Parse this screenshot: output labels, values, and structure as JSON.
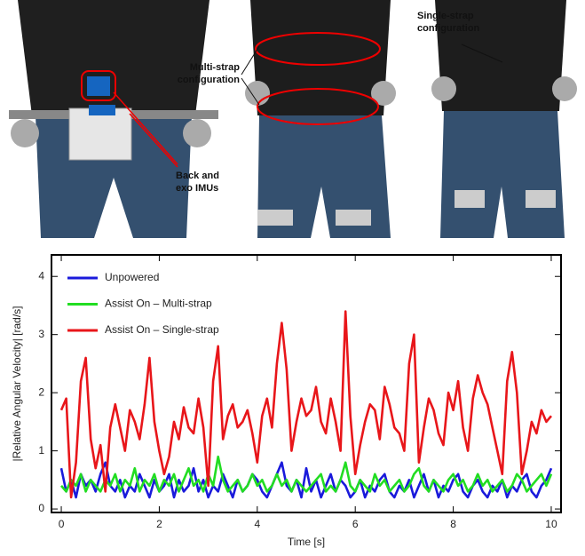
{
  "annotations": [
    {
      "lines": [
        "Multi-strap",
        "configuration"
      ]
    },
    {
      "lines": [
        "Single-strap",
        "configuration"
      ]
    },
    {
      "lines": [
        "Back and",
        "exo IMUs"
      ]
    }
  ],
  "chart_data": {
    "type": "line",
    "x_label": "Time [s]",
    "y_label": "|Relative Angular Velocity| [rad/s]",
    "x": [
      0,
      0.1,
      0.2,
      0.3,
      0.4,
      0.5,
      0.6,
      0.7,
      0.8,
      0.9,
      1,
      1.1,
      1.2,
      1.3,
      1.4,
      1.5,
      1.6,
      1.7,
      1.8,
      1.9,
      2,
      2.1,
      2.2,
      2.3,
      2.4,
      2.5,
      2.6,
      2.7,
      2.8,
      2.9,
      3,
      3.1,
      3.2,
      3.3,
      3.4,
      3.5,
      3.6,
      3.7,
      3.8,
      3.9,
      4,
      4.1,
      4.2,
      4.3,
      4.4,
      4.5,
      4.6,
      4.7,
      4.8,
      4.9,
      5,
      5.1,
      5.2,
      5.3,
      5.4,
      5.5,
      5.6,
      5.7,
      5.8,
      5.9,
      6,
      6.1,
      6.2,
      6.3,
      6.4,
      6.5,
      6.6,
      6.7,
      6.8,
      6.9,
      7,
      7.1,
      7.2,
      7.3,
      7.4,
      7.5,
      7.6,
      7.7,
      7.8,
      7.9,
      8,
      8.1,
      8.2,
      8.3,
      8.4,
      8.5,
      8.6,
      8.7,
      8.8,
      8.9,
      9,
      9.1,
      9.2,
      9.3,
      9.4,
      9.5,
      9.6,
      9.7,
      9.8,
      9.9,
      10
    ],
    "series": [
      {
        "name": "Unpowered",
        "color": "#1a1adb",
        "values": [
          0.7,
          0.3,
          0.5,
          0.2,
          0.6,
          0.4,
          0.5,
          0.3,
          0.6,
          0.8,
          0.4,
          0.3,
          0.5,
          0.2,
          0.4,
          0.3,
          0.6,
          0.4,
          0.2,
          0.5,
          0.3,
          0.4,
          0.6,
          0.2,
          0.5,
          0.3,
          0.4,
          0.7,
          0.3,
          0.5,
          0.2,
          0.4,
          0.3,
          0.6,
          0.4,
          0.2,
          0.5,
          0.3,
          0.4,
          0.6,
          0.5,
          0.3,
          0.2,
          0.4,
          0.6,
          0.8,
          0.4,
          0.3,
          0.5,
          0.2,
          0.7,
          0.3,
          0.5,
          0.2,
          0.4,
          0.6,
          0.3,
          0.5,
          0.4,
          0.2,
          0.3,
          0.5,
          0.2,
          0.4,
          0.3,
          0.5,
          0.6,
          0.3,
          0.2,
          0.4,
          0.3,
          0.5,
          0.2,
          0.4,
          0.6,
          0.3,
          0.5,
          0.2,
          0.4,
          0.3,
          0.5,
          0.6,
          0.3,
          0.2,
          0.4,
          0.5,
          0.3,
          0.2,
          0.4,
          0.3,
          0.5,
          0.2,
          0.4,
          0.3,
          0.5,
          0.6,
          0.3,
          0.2,
          0.4,
          0.5,
          0.7
        ]
      },
      {
        "name": "Assist On – Multi-strap",
        "color": "#22dd22",
        "values": [
          0.4,
          0.3,
          0.5,
          0.4,
          0.6,
          0.3,
          0.5,
          0.4,
          0.3,
          0.5,
          0.4,
          0.6,
          0.3,
          0.5,
          0.4,
          0.7,
          0.3,
          0.5,
          0.4,
          0.6,
          0.3,
          0.5,
          0.4,
          0.6,
          0.3,
          0.5,
          0.7,
          0.4,
          0.5,
          0.3,
          0.6,
          0.4,
          0.9,
          0.5,
          0.3,
          0.4,
          0.5,
          0.3,
          0.4,
          0.6,
          0.4,
          0.5,
          0.3,
          0.4,
          0.6,
          0.4,
          0.5,
          0.3,
          0.5,
          0.4,
          0.3,
          0.4,
          0.5,
          0.6,
          0.3,
          0.4,
          0.3,
          0.5,
          0.8,
          0.4,
          0.3,
          0.5,
          0.4,
          0.3,
          0.6,
          0.4,
          0.5,
          0.3,
          0.4,
          0.5,
          0.3,
          0.4,
          0.6,
          0.7,
          0.4,
          0.3,
          0.5,
          0.4,
          0.3,
          0.5,
          0.6,
          0.4,
          0.5,
          0.3,
          0.4,
          0.6,
          0.4,
          0.5,
          0.3,
          0.4,
          0.5,
          0.3,
          0.4,
          0.6,
          0.5,
          0.3,
          0.4,
          0.5,
          0.6,
          0.4,
          0.6
        ]
      },
      {
        "name": "Assist On – Single-strap",
        "color": "#e8161a",
        "values": [
          1.7,
          1.9,
          0.2,
          0.8,
          2.2,
          2.6,
          1.2,
          0.7,
          1.1,
          0.3,
          1.4,
          1.8,
          1.4,
          1.0,
          1.7,
          1.5,
          1.2,
          1.8,
          2.6,
          1.5,
          1.0,
          0.6,
          0.9,
          1.5,
          1.2,
          1.75,
          1.4,
          1.3,
          1.9,
          1.4,
          0.4,
          2.2,
          2.8,
          1.2,
          1.6,
          1.8,
          1.4,
          1.5,
          1.7,
          1.3,
          0.8,
          1.6,
          1.9,
          1.4,
          2.5,
          3.2,
          2.4,
          1.0,
          1.5,
          1.9,
          1.6,
          1.7,
          2.1,
          1.5,
          1.3,
          1.9,
          1.5,
          1.0,
          3.4,
          1.6,
          0.6,
          1.1,
          1.5,
          1.8,
          1.7,
          1.2,
          2.1,
          1.8,
          1.4,
          1.3,
          1.0,
          2.5,
          3.0,
          0.8,
          1.4,
          1.9,
          1.7,
          1.3,
          1.1,
          2.0,
          1.7,
          2.2,
          1.4,
          1.0,
          1.9,
          2.3,
          2.0,
          1.8,
          1.4,
          1.0,
          0.6,
          2.2,
          2.7,
          2.0,
          0.6,
          1.0,
          1.5,
          1.3,
          1.7,
          1.5,
          1.6
        ]
      }
    ],
    "xlim": [
      -0.2,
      10.2
    ],
    "ylim": [
      -0.06,
      4.37
    ],
    "xticks": [
      0,
      2,
      4,
      6,
      8,
      10
    ],
    "yticks": [
      0,
      1,
      2,
      3,
      4
    ],
    "legend": "upper-left"
  }
}
